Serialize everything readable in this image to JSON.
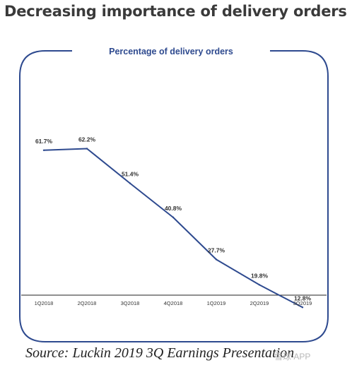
{
  "header": {
    "title": "Decreasing importance of delivery orders"
  },
  "chart_data": {
    "type": "line",
    "title": "Percentage of delivery orders",
    "xlabel": "",
    "ylabel": "",
    "categories": [
      "1Q2018",
      "2Q2018",
      "3Q2018",
      "4Q2018",
      "1Q2019",
      "2Q2019",
      "3Q2019"
    ],
    "series": [
      {
        "values": [
          61.7,
          62.2,
          51.4,
          40.8,
          27.7,
          19.8,
          12.8
        ],
        "labels": [
          "61.7%",
          "62.2%",
          "51.4%",
          "40.8%",
          "27.7%",
          "19.8%",
          "12.8%"
        ]
      }
    ],
    "ylim": [
      0,
      100
    ],
    "grid": false,
    "legend": "none",
    "colors": {
      "line": "#2e4a8f",
      "frame": "#2e4a8f",
      "title": "#2e4a8f",
      "axis": "#222222",
      "text": "#333333"
    }
  },
  "footer": {
    "source": "Source: Luckin 2019 3Q Earnings Presentation",
    "watermark": "雪球 APP"
  }
}
